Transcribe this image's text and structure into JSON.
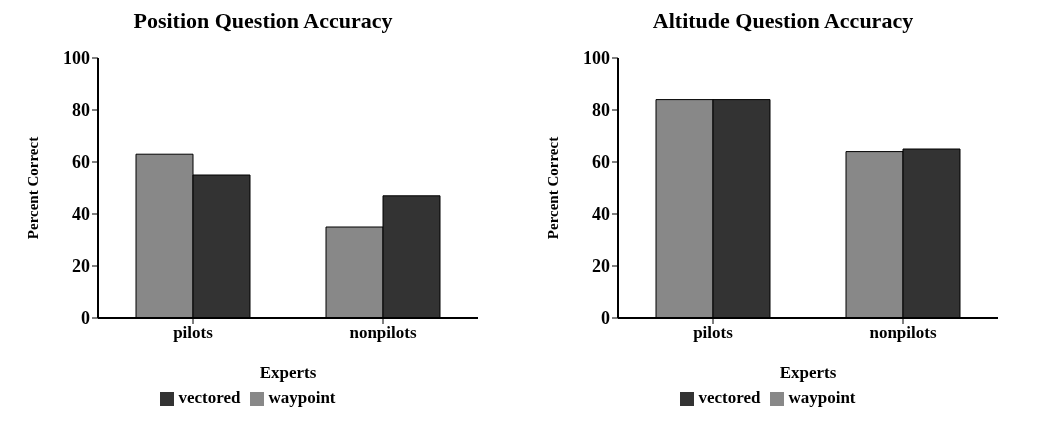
{
  "chart_data": [
    {
      "type": "bar",
      "title": "Position Question Accuracy",
      "xlabel": "Experts",
      "ylabel": "Percent Correct",
      "categories": [
        "pilots",
        "nonpilots"
      ],
      "series": [
        {
          "name": "waypoint",
          "color": "#888888",
          "values": [
            63,
            35
          ]
        },
        {
          "name": "vectored",
          "color": "#333333",
          "values": [
            55,
            47
          ]
        }
      ],
      "ylim": [
        0,
        100
      ],
      "yticks": [
        0,
        20,
        40,
        60,
        80,
        100
      ],
      "grid": false,
      "legend": "bottom"
    },
    {
      "type": "bar",
      "title": "Altitude Question Accuracy",
      "xlabel": "Experts",
      "ylabel": "Percent Correct",
      "categories": [
        "pilots",
        "nonpilots"
      ],
      "series": [
        {
          "name": "waypoint",
          "color": "#888888",
          "values": [
            84,
            64
          ]
        },
        {
          "name": "vectored",
          "color": "#333333",
          "values": [
            84,
            65
          ]
        }
      ],
      "ylim": [
        0,
        100
      ],
      "yticks": [
        0,
        20,
        40,
        60,
        80,
        100
      ],
      "grid": false,
      "legend": "bottom"
    }
  ]
}
